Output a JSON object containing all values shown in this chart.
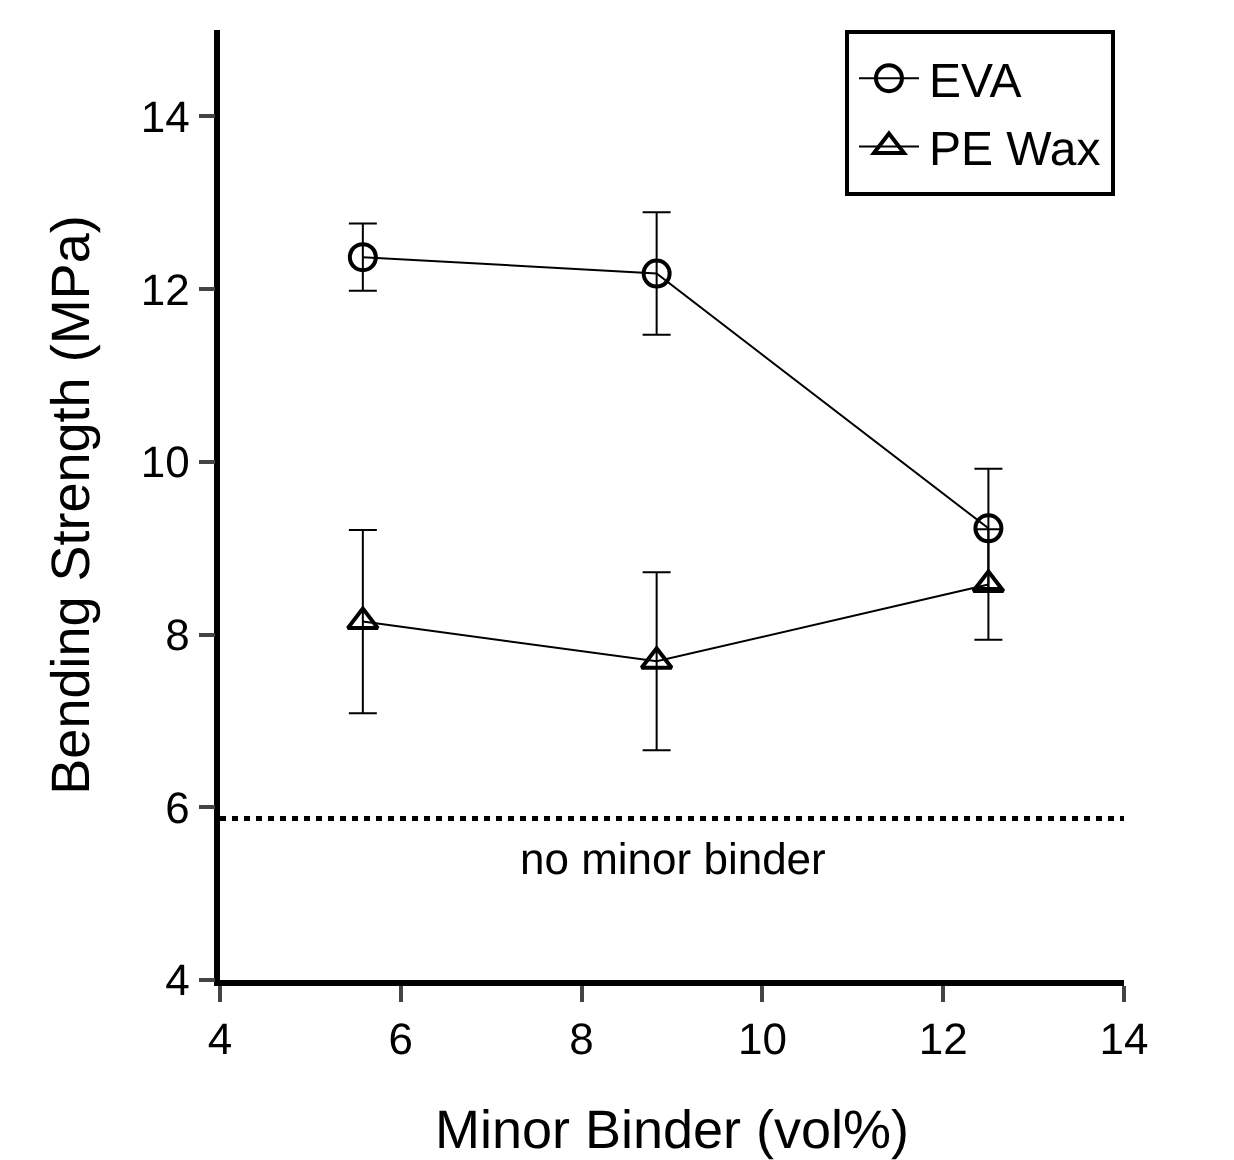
{
  "chart_data": {
    "type": "line",
    "xlabel": "Minor Binder (vol%)",
    "ylabel": "Bending Strength (MPa)",
    "x": [
      5.58,
      8.83,
      12.5
    ],
    "series": [
      {
        "name": "EVA",
        "color": "#000000",
        "marker": "circle",
        "values": [
          12.37,
          12.18,
          9.23
        ],
        "errors": [
          0.39,
          0.71,
          0.69
        ]
      },
      {
        "name": "PE Wax",
        "color": "#000000",
        "marker": "triangle",
        "values": [
          8.15,
          7.69,
          8.58
        ],
        "errors": [
          1.06,
          1.03,
          0.64
        ]
      }
    ],
    "xlim": [
      4,
      14
    ],
    "xticks": [
      4,
      6,
      8,
      10,
      12,
      14
    ],
    "ylim": [
      4,
      15
    ],
    "yticks": [
      4,
      6,
      8,
      10,
      12,
      14
    ],
    "ref_lines": [
      {
        "axis": "y",
        "value": 5.87,
        "label": "no minor binder",
        "color": "#000000",
        "line_style": "dotted"
      }
    ],
    "grid": false,
    "legend": "top right",
    "line_style": "solid"
  }
}
